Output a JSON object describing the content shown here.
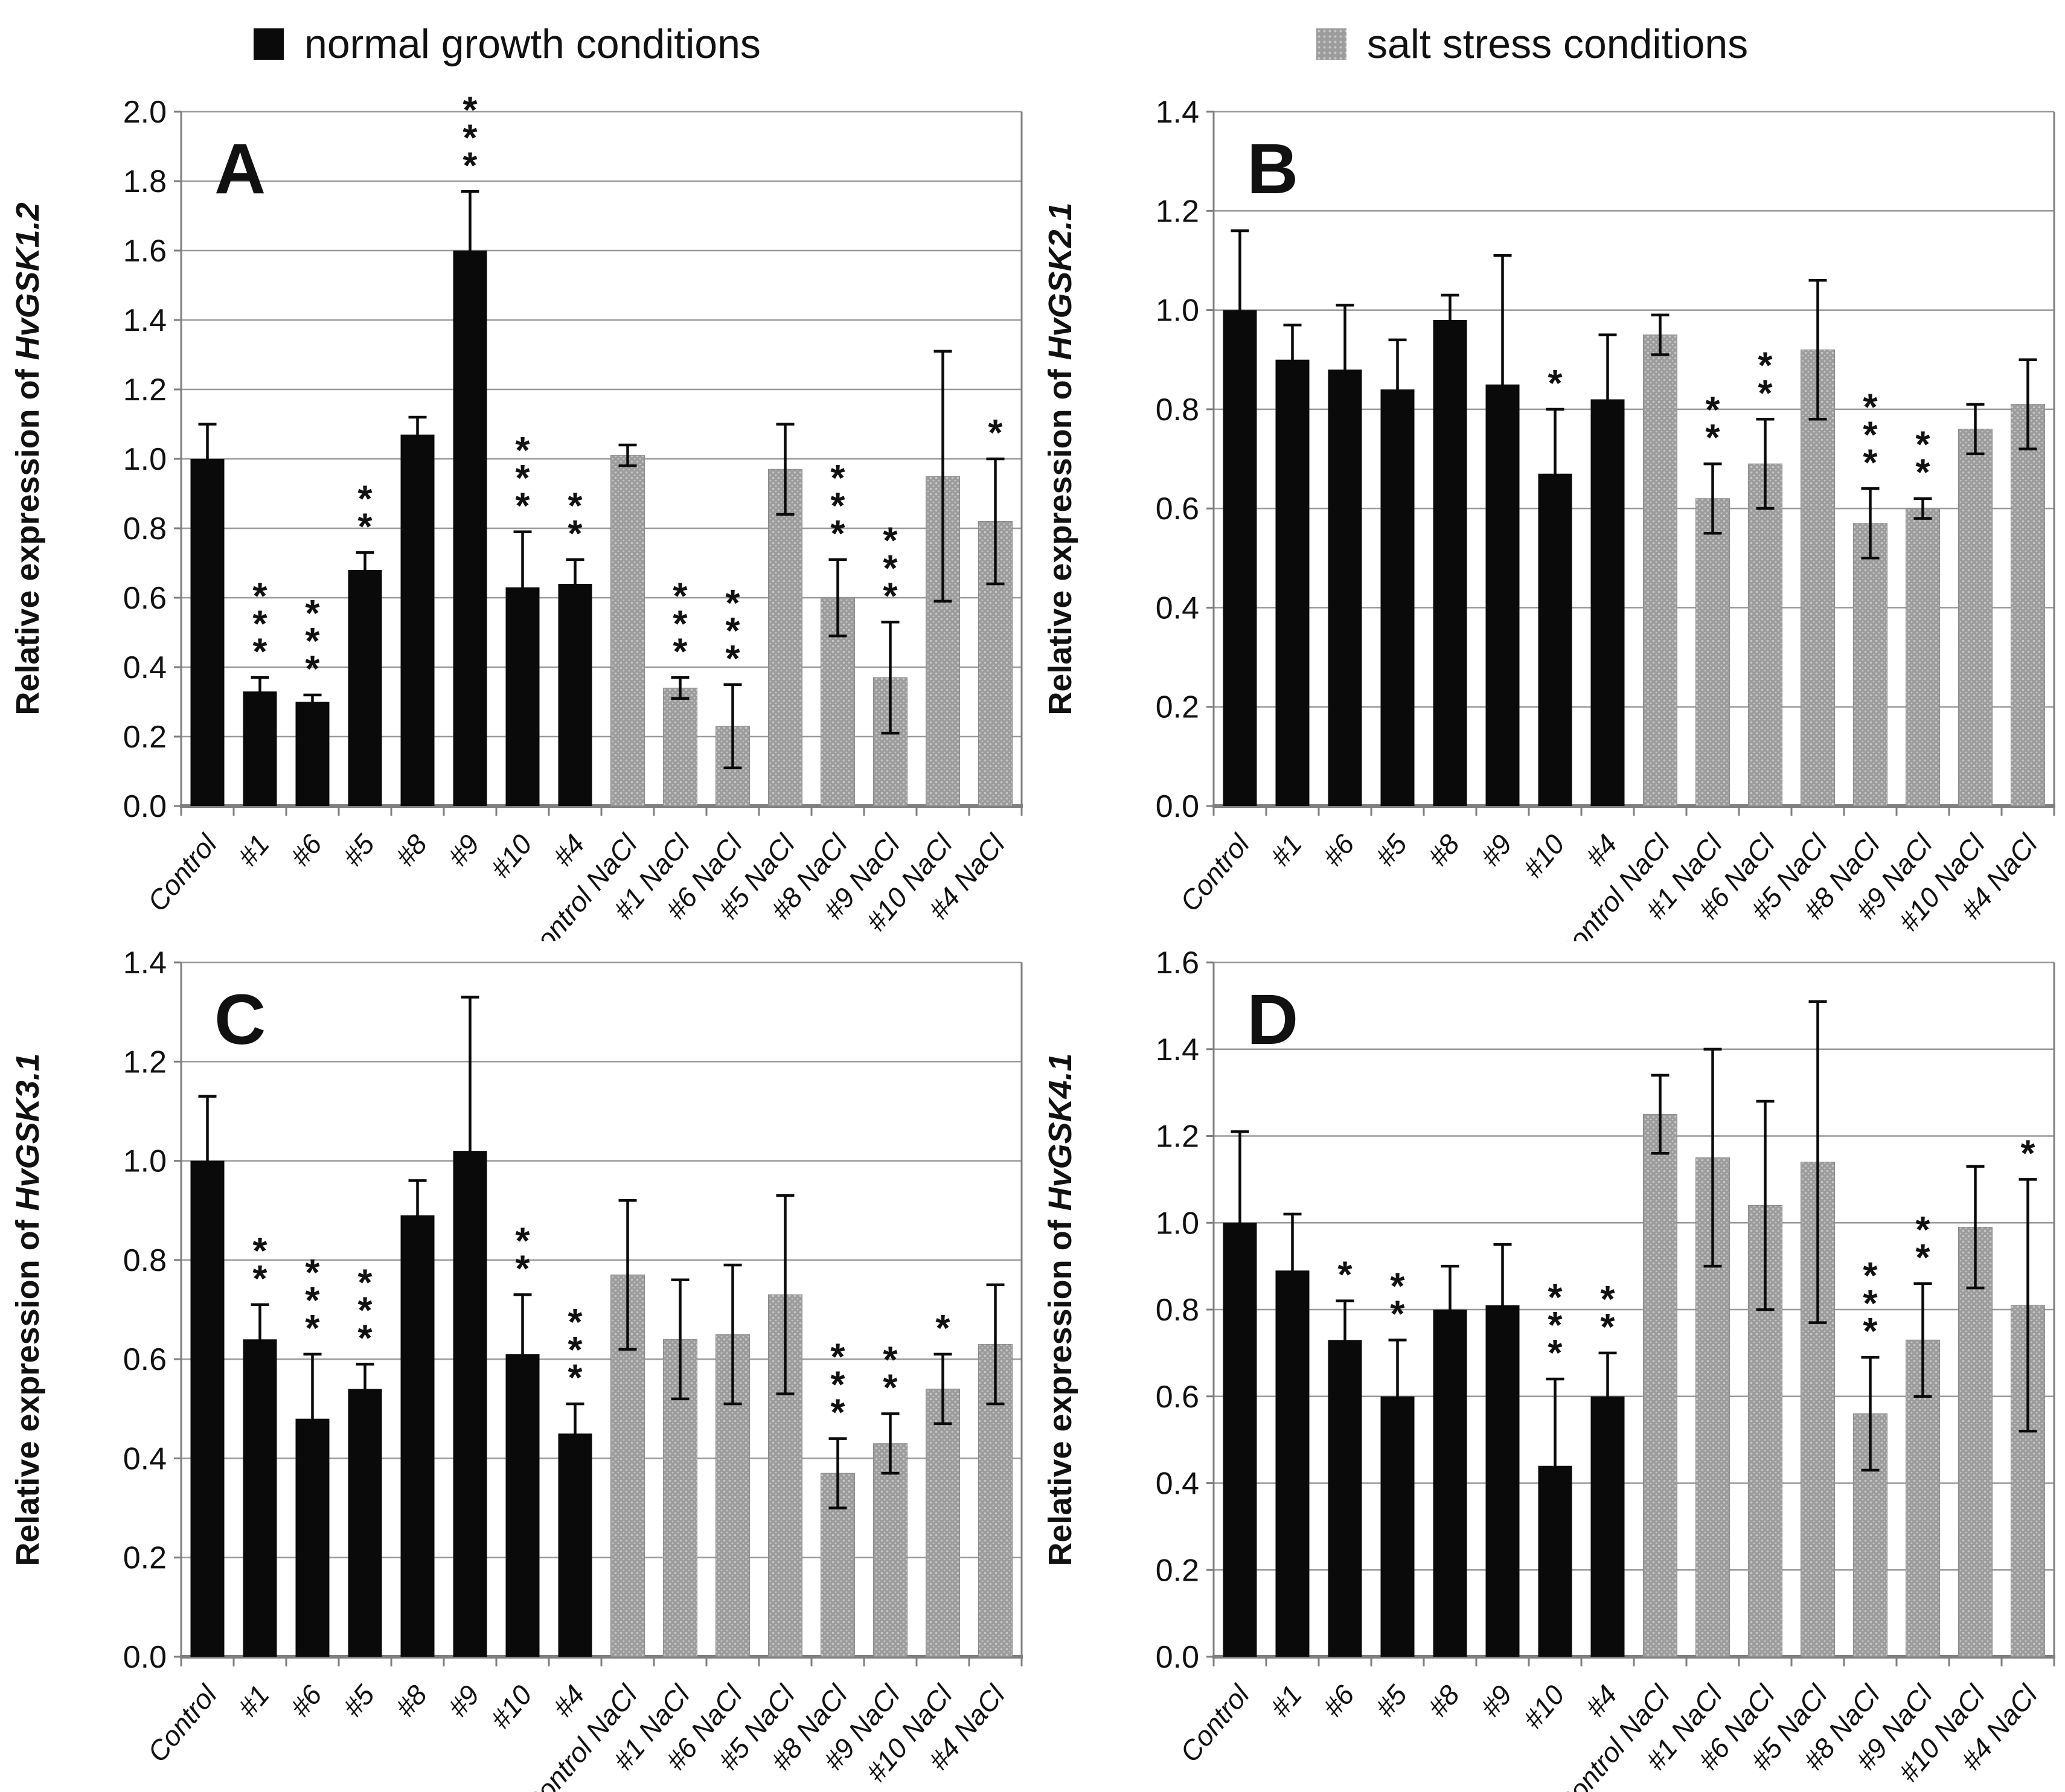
{
  "page": {
    "background": "#ffffff"
  },
  "legend": {
    "position": "top",
    "items": [
      {
        "label": "normal growth conditions",
        "swatch": "black-square",
        "color": "#0a0a0a"
      },
      {
        "label": "salt stress conditions",
        "swatch": "gray-dotted-square",
        "color": "#9c9c9c"
      }
    ]
  },
  "colors": {
    "normal_bar": "#0a0a0a",
    "salt_bar": "#9c9c9c",
    "salt_bar_dot": "#c6c6c6",
    "error_bar": "#0a0a0a",
    "grid": "#9a9a9a",
    "axis": "#7f7f7f",
    "text": "#111111"
  },
  "axis": {
    "ylabel_prefix": "Relative expression of",
    "ytick_decimals": 1
  },
  "chart_data": [
    {
      "panel_letter": "A",
      "type": "bar",
      "gene": "HvGSK1.2",
      "ylabel": "Relative expression of HvGSK1.2",
      "xlabel": "",
      "ylim": [
        0,
        2.0
      ],
      "ytick_step": 0.2,
      "grid": true,
      "group_split_index": 8,
      "categories": [
        "Control",
        "#1",
        "#6",
        "#5",
        "#8",
        "#9",
        "#10",
        "#4",
        "Control NaCl",
        "#1 NaCl",
        "#6 NaCl",
        "#5 NaCl",
        "#8 NaCl",
        "#9 NaCl",
        "#10 NaCl",
        "#4 NaCl"
      ],
      "values": [
        1.0,
        0.33,
        0.3,
        0.68,
        1.07,
        1.6,
        0.63,
        0.64,
        1.01,
        0.34,
        0.23,
        0.97,
        0.6,
        0.37,
        0.95,
        0.82
      ],
      "errors": [
        0.1,
        0.04,
        0.02,
        0.05,
        0.05,
        0.17,
        0.16,
        0.07,
        0.03,
        0.03,
        0.12,
        0.13,
        0.11,
        0.16,
        0.36,
        0.18
      ],
      "significance": [
        "",
        "***",
        "***",
        "**",
        "",
        "***",
        "***",
        "**",
        "",
        "***",
        "***",
        "",
        "***",
        "***",
        "",
        "*"
      ]
    },
    {
      "panel_letter": "B",
      "type": "bar",
      "gene": "HvGSK2.1",
      "ylabel": "Relative expression of HvGSK2.1",
      "xlabel": "",
      "ylim": [
        0,
        1.4
      ],
      "ytick_step": 0.2,
      "grid": true,
      "group_split_index": 8,
      "categories": [
        "Control",
        "#1",
        "#6",
        "#5",
        "#8",
        "#9",
        "#10",
        "#4",
        "Control NaCl",
        "#1 NaCl",
        "#6 NaCl",
        "#5 NaCl",
        "#8 NaCl",
        "#9 NaCl",
        "#10 NaCl",
        "#4 NaCl"
      ],
      "values": [
        1.0,
        0.9,
        0.88,
        0.84,
        0.98,
        0.85,
        0.67,
        0.82,
        0.95,
        0.62,
        0.69,
        0.92,
        0.57,
        0.6,
        0.76,
        0.81
      ],
      "errors": [
        0.16,
        0.07,
        0.13,
        0.1,
        0.05,
        0.26,
        0.13,
        0.13,
        0.04,
        0.07,
        0.09,
        0.14,
        0.07,
        0.02,
        0.05,
        0.09
      ],
      "significance": [
        "",
        "",
        "",
        "",
        "",
        "",
        "*",
        "",
        "",
        "**",
        "**",
        "",
        "***",
        "**",
        "",
        ""
      ]
    },
    {
      "panel_letter": "C",
      "type": "bar",
      "gene": "HvGSK3.1",
      "ylabel": "Relative expression of HvGSK3.1",
      "xlabel": "",
      "ylim": [
        0,
        1.4
      ],
      "ytick_step": 0.2,
      "grid": true,
      "group_split_index": 8,
      "categories": [
        "Control",
        "#1",
        "#6",
        "#5",
        "#8",
        "#9",
        "#10",
        "#4",
        "Control NaCl",
        "#1 NaCl",
        "#6 NaCl",
        "#5 NaCl",
        "#8 NaCl",
        "#9 NaCl",
        "#10 NaCl",
        "#4 NaCl"
      ],
      "values": [
        1.0,
        0.64,
        0.48,
        0.54,
        0.89,
        1.02,
        0.61,
        0.45,
        0.77,
        0.64,
        0.65,
        0.73,
        0.37,
        0.43,
        0.54,
        0.63
      ],
      "errors": [
        0.13,
        0.07,
        0.13,
        0.05,
        0.07,
        0.31,
        0.12,
        0.06,
        0.15,
        0.12,
        0.14,
        0.2,
        0.07,
        0.06,
        0.07,
        0.12
      ],
      "significance": [
        "",
        "**",
        "***",
        "***",
        "",
        "",
        "**",
        "***",
        "",
        "",
        "",
        "",
        "***",
        "**",
        "*",
        ""
      ]
    },
    {
      "panel_letter": "D",
      "type": "bar",
      "gene": "HvGSK4.1",
      "ylabel": "Relative expression of HvGSK4.1",
      "xlabel": "",
      "ylim": [
        0,
        1.6
      ],
      "ytick_step": 0.2,
      "grid": true,
      "group_split_index": 8,
      "categories": [
        "Control",
        "#1",
        "#6",
        "#5",
        "#8",
        "#9",
        "#10",
        "#4",
        "Control NaCl",
        "#1 NaCl",
        "#6 NaCl",
        "#5 NaCl",
        "#8 NaCl",
        "#9 NaCl",
        "#10 NaCl",
        "#4 NaCl"
      ],
      "values": [
        1.0,
        0.89,
        0.73,
        0.6,
        0.8,
        0.81,
        0.44,
        0.6,
        1.25,
        1.15,
        1.04,
        1.14,
        0.56,
        0.73,
        0.99,
        0.81
      ],
      "errors": [
        0.21,
        0.13,
        0.09,
        0.13,
        0.1,
        0.14,
        0.2,
        0.1,
        0.09,
        0.25,
        0.24,
        0.37,
        0.13,
        0.13,
        0.14,
        0.29
      ],
      "significance": [
        "",
        "",
        "*",
        "**",
        "",
        "",
        "***",
        "**",
        "",
        "",
        "",
        "",
        "***",
        "**",
        "",
        "*"
      ]
    }
  ]
}
